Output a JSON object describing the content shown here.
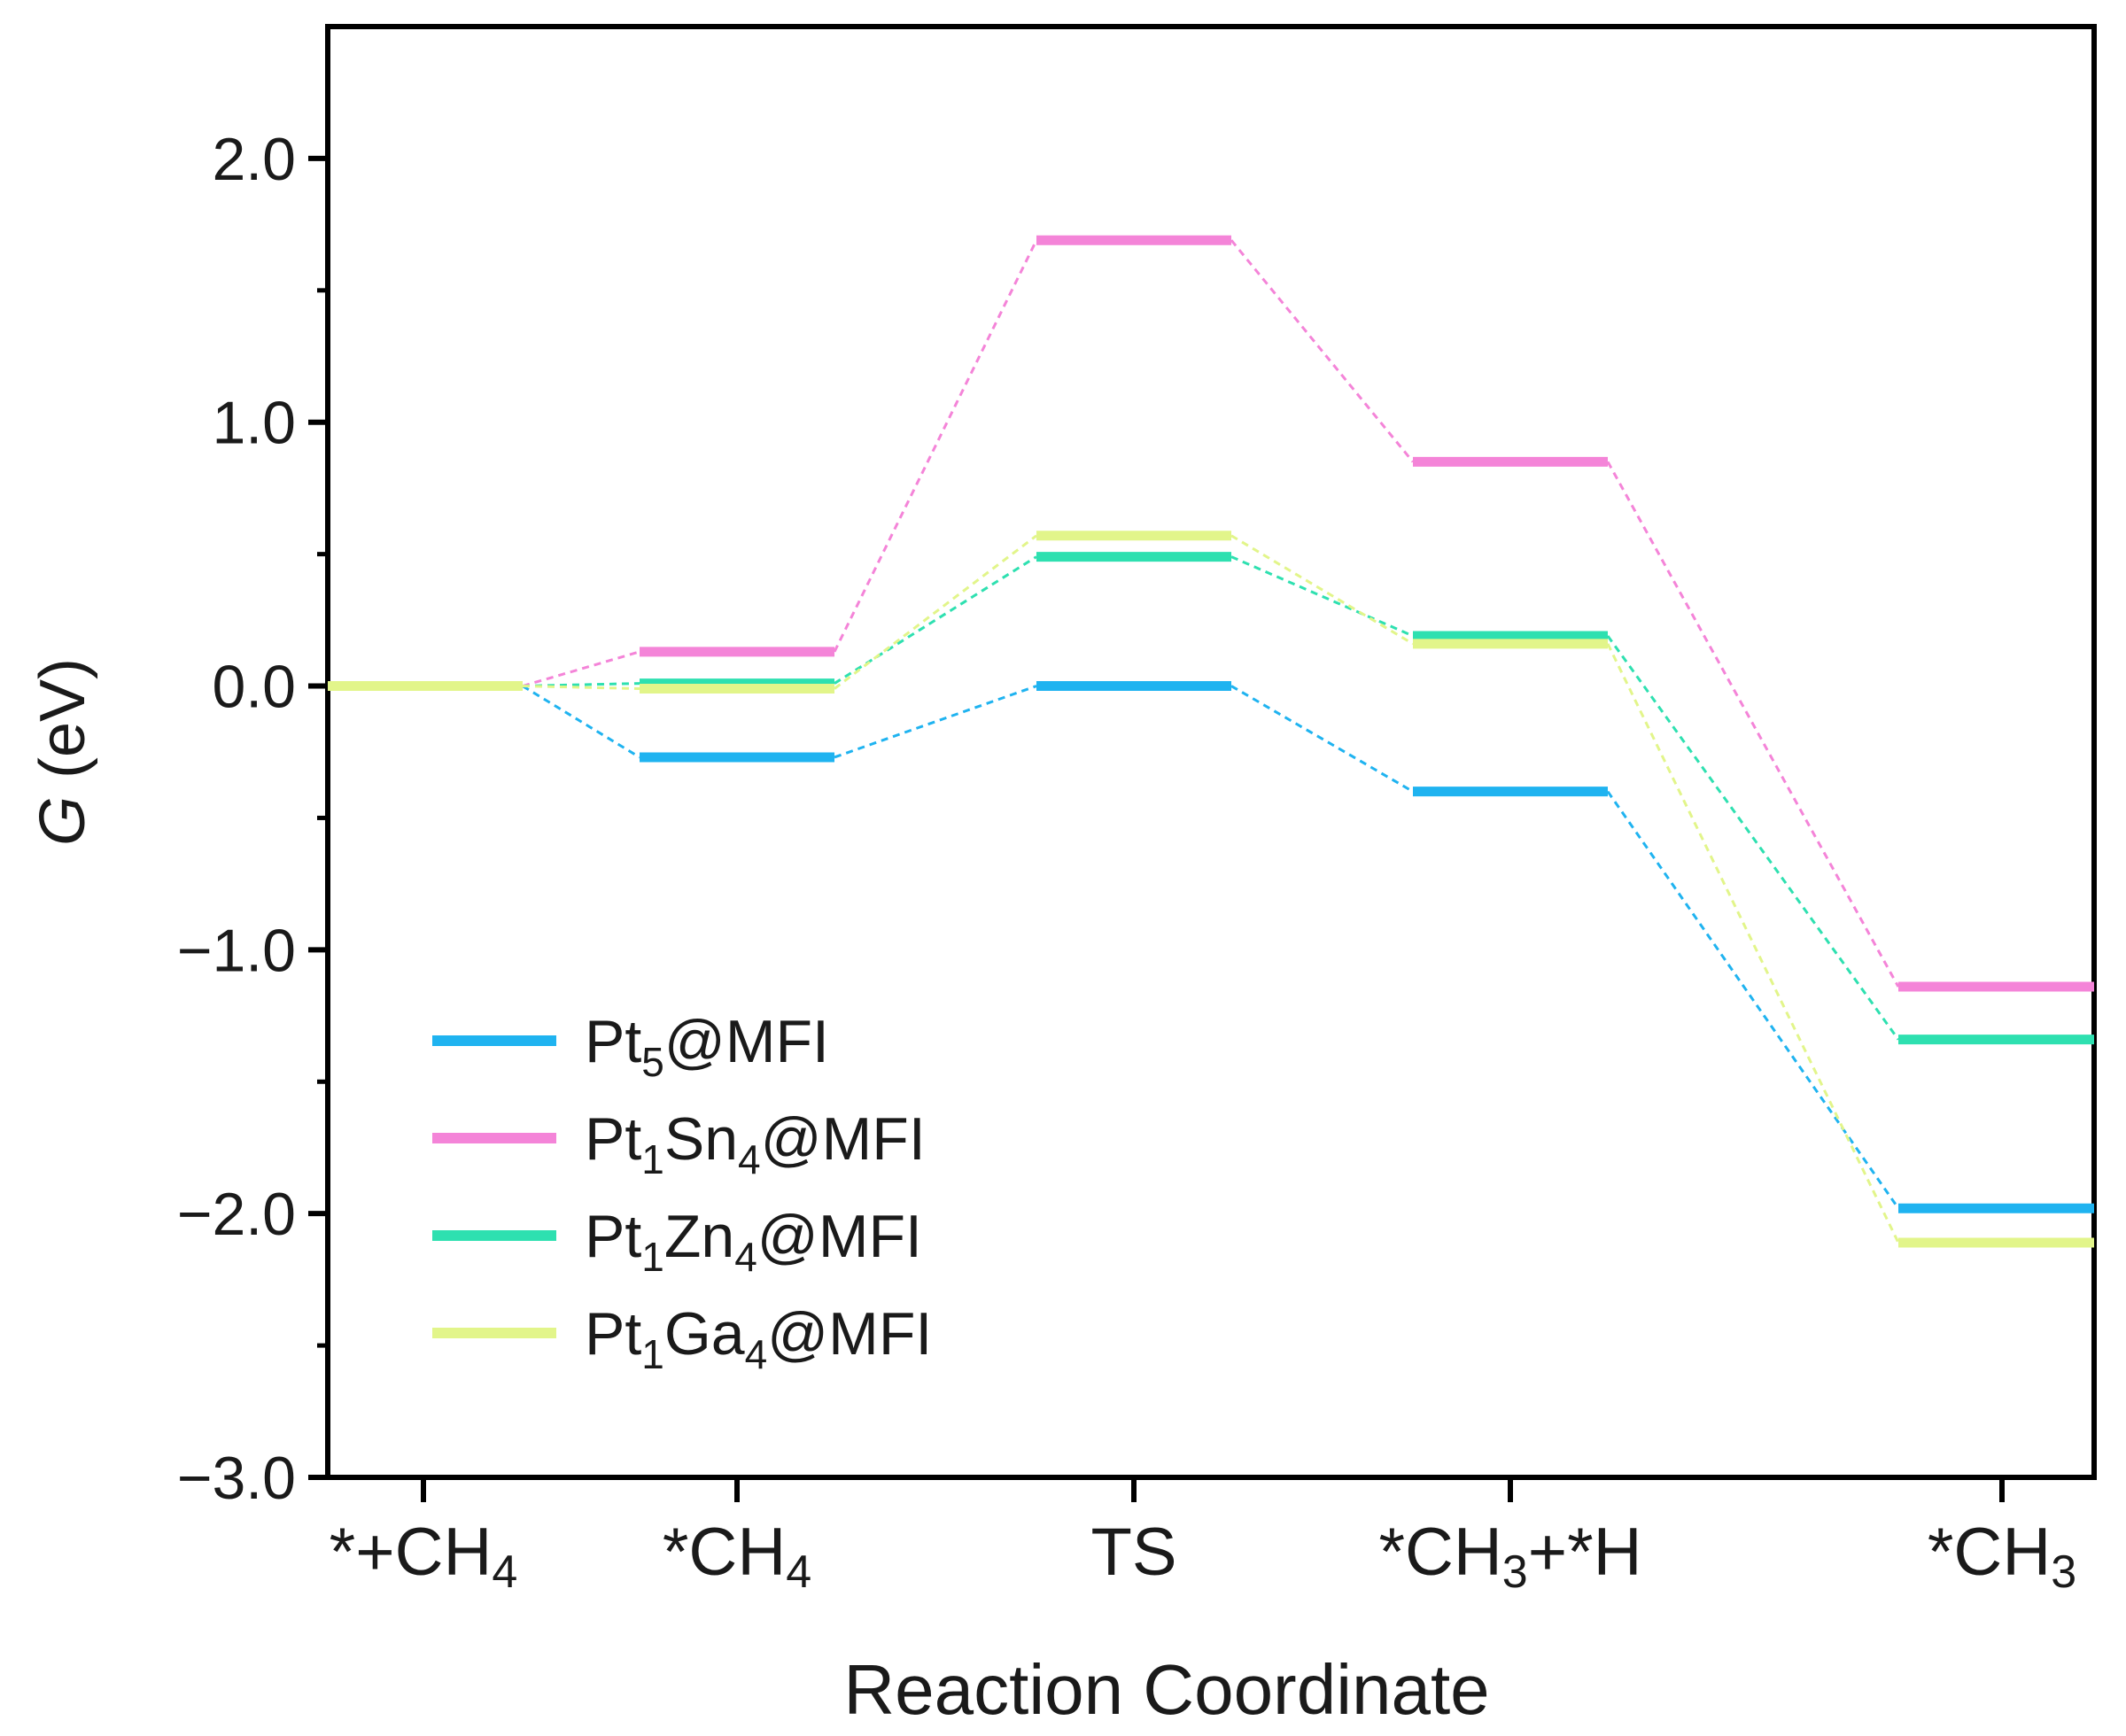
{
  "chart_data": {
    "type": "line",
    "subtype": "free-energy-diagram",
    "title": "",
    "xlabel": "Reaction Coordinate",
    "ylabel": {
      "var": "G",
      "unit": " (eV)"
    },
    "ylim": [
      -3.0,
      2.5
    ],
    "yticks": [
      2.0,
      1.0,
      0.0,
      -1.0,
      -2.0,
      -3.0
    ],
    "ytick_labels": [
      "2.0",
      "1.0",
      "0.0",
      "−1.0",
      "−2.0",
      "−3.0"
    ],
    "categories": [
      {
        "base": "*+CH",
        "sub": "4",
        "tail": ""
      },
      {
        "base": "*CH",
        "sub": "4",
        "tail": ""
      },
      {
        "base": "TS",
        "sub": "",
        "tail": ""
      },
      {
        "base": "*CH",
        "sub": "3",
        "tail": "+*H"
      },
      {
        "base": "*CH",
        "sub": "3",
        "tail": ""
      }
    ],
    "series": [
      {
        "name": "Pt5@MFI",
        "label_parts": [
          [
            "Pt",
            ""
          ],
          [
            "5",
            "sub"
          ],
          [
            "@MFI",
            ""
          ]
        ],
        "color": "#1fb3f0",
        "values": [
          0.0,
          -0.27,
          0.0,
          -0.4,
          -1.98
        ]
      },
      {
        "name": "Pt1Sn4@MFI",
        "label_parts": [
          [
            "Pt",
            ""
          ],
          [
            "1",
            "sub"
          ],
          [
            "Sn",
            ""
          ],
          [
            "4",
            "sub"
          ],
          [
            "@MFI",
            ""
          ]
        ],
        "color": "#f484d8",
        "values": [
          0.0,
          0.13,
          1.69,
          0.85,
          -1.14
        ]
      },
      {
        "name": "Pt1Zn4@MFI",
        "label_parts": [
          [
            "Pt",
            ""
          ],
          [
            "1",
            "sub"
          ],
          [
            "Zn",
            ""
          ],
          [
            "4",
            "sub"
          ],
          [
            "@MFI",
            ""
          ]
        ],
        "color": "#2ee0b0",
        "values": [
          0.0,
          0.01,
          0.49,
          0.19,
          -1.34
        ]
      },
      {
        "name": "Pt1Ga4@MFI",
        "label_parts": [
          [
            "Pt",
            ""
          ],
          [
            "1",
            "sub"
          ],
          [
            "Ga",
            ""
          ],
          [
            "4",
            "sub"
          ],
          [
            "@MFI",
            ""
          ]
        ],
        "color": "#e2f58a",
        "values": [
          0.0,
          -0.01,
          0.57,
          0.16,
          -2.11
        ]
      }
    ],
    "legend": "lower-left",
    "grid": false
  }
}
